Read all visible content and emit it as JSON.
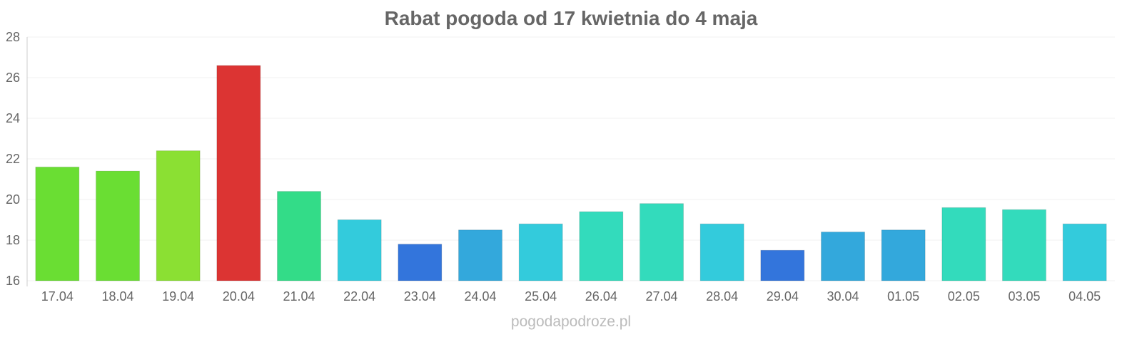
{
  "chart_data": {
    "type": "bar",
    "title": "Rabat pogoda od 17 kwietnia do 4 maja",
    "xlabel": "",
    "ylabel": "",
    "ylim": [
      16,
      28
    ],
    "yticks": [
      16,
      18,
      20,
      22,
      24,
      26,
      28
    ],
    "grid": true,
    "categories": [
      "17.04",
      "18.04",
      "19.04",
      "20.04",
      "21.04",
      "22.04",
      "23.04",
      "24.04",
      "25.04",
      "26.04",
      "27.04",
      "28.04",
      "29.04",
      "30.04",
      "01.05",
      "02.05",
      "03.05",
      "04.05"
    ],
    "values": [
      21.6,
      21.4,
      22.4,
      26.6,
      20.4,
      19.0,
      17.8,
      18.5,
      18.8,
      19.4,
      19.8,
      18.8,
      17.5,
      18.4,
      18.5,
      19.6,
      19.5,
      18.8
    ],
    "colors": [
      "#6ade33",
      "#6ade33",
      "#8be033",
      "#dc3433",
      "#33dc88",
      "#33cbdc",
      "#3375dc",
      "#33a8dc",
      "#33cbdc",
      "#33dbbc",
      "#33dbbc",
      "#33cbdc",
      "#3375dc",
      "#33a8dc",
      "#33a8dc",
      "#33dbbc",
      "#33dbbc",
      "#33cbdc"
    ]
  },
  "footer": "pogodapodroze.pl"
}
